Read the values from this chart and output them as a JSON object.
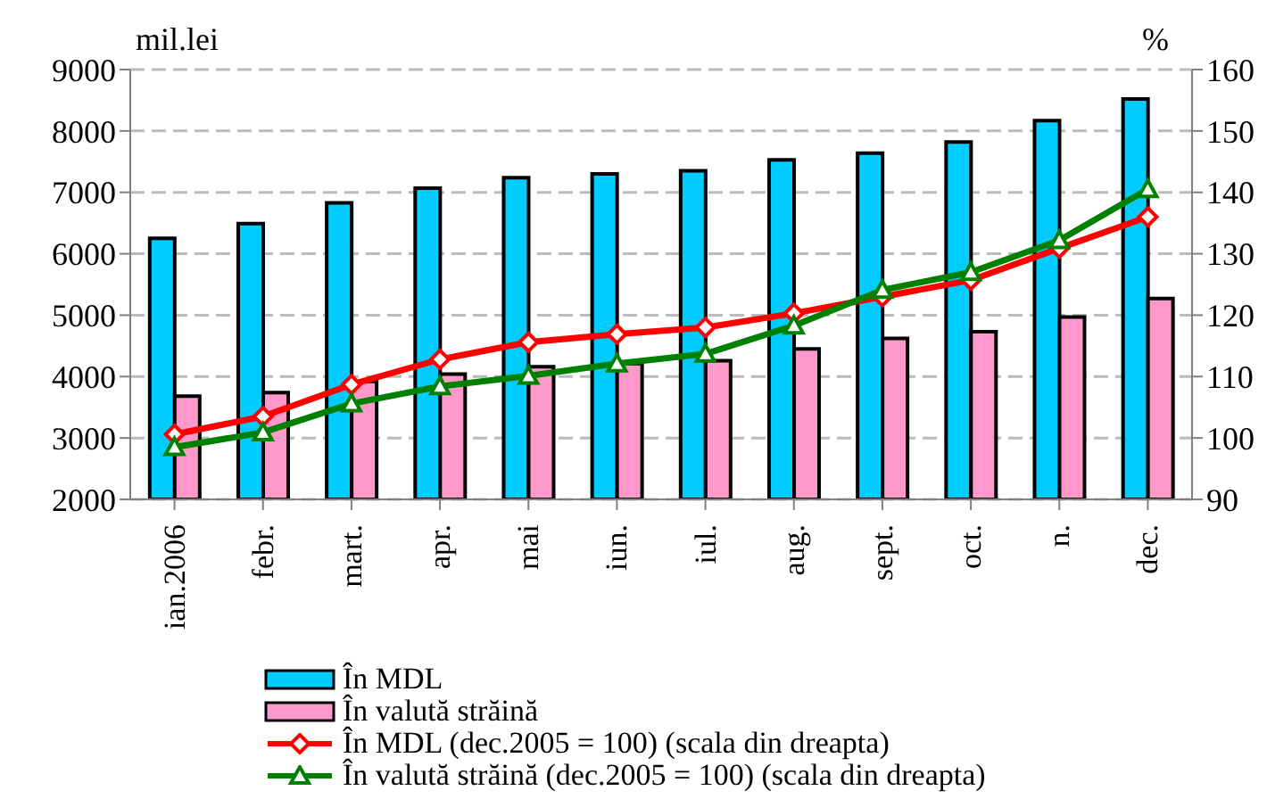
{
  "chart_data": {
    "type": "bar",
    "ylabel": "mil.lei",
    "y2label": "%",
    "categories": [
      "ian.2006",
      "febr.",
      "mart.",
      "apr.",
      "mai",
      "iun.",
      "iul.",
      "aug.",
      "sept.",
      "oct.",
      "n.",
      "dec."
    ],
    "series": [
      {
        "name": "În MDL",
        "color": "#00ccff",
        "values": [
          6250,
          6490,
          6830,
          7070,
          7240,
          7300,
          7350,
          7530,
          7640,
          7820,
          8170,
          8520
        ]
      },
      {
        "name": "În valută străină",
        "color": "#ff99cc",
        "values": [
          3680,
          3740,
          3920,
          4040,
          4160,
          4210,
          4260,
          4450,
          4620,
          4730,
          4970,
          5270
        ]
      },
      {
        "name": "În MDL (dec.2005 = 100) (scala din dreapta)",
        "type": "line",
        "axis": "y2",
        "color": "#ff0000",
        "marker": "diamond",
        "values": [
          100.6,
          103.5,
          108.7,
          112.8,
          115.6,
          116.9,
          118.0,
          120.3,
          123.0,
          125.7,
          130.9,
          136.0
        ]
      },
      {
        "name": "În valută străină (dec.2005 = 100) (scala din dreapta)",
        "type": "line",
        "axis": "y2",
        "color": "#008000",
        "marker": "triangle",
        "values": [
          98.5,
          100.9,
          105.6,
          108.4,
          110.1,
          112.1,
          113.7,
          118.3,
          124.1,
          127.0,
          132.2,
          140.5
        ]
      }
    ],
    "ylim": [
      2000,
      9000
    ],
    "yticks": [
      2000,
      3000,
      4000,
      5000,
      6000,
      7000,
      8000,
      9000
    ],
    "y2lim": [
      90,
      160
    ],
    "y2ticks": [
      90,
      100,
      110,
      120,
      130,
      140,
      150,
      160
    ],
    "grid": "y",
    "legend": "bottom"
  }
}
